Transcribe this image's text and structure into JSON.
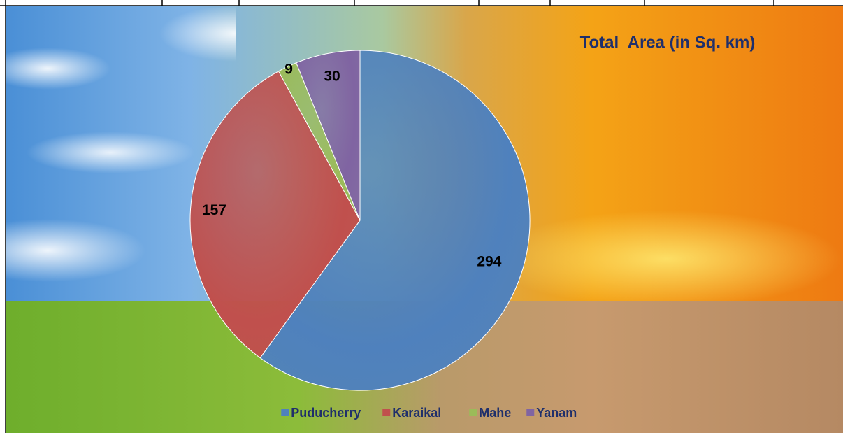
{
  "chart_data": {
    "type": "pie",
    "title": "Total  Area (in Sq. km)",
    "categories": [
      "Puducherry",
      "Karaikal",
      "Mahe",
      "Yanam"
    ],
    "values": [
      294,
      157,
      9,
      30
    ],
    "colors": [
      "#4f81bd",
      "#c0504d",
      "#9bbb59",
      "#8064a2"
    ],
    "legend": "bottom"
  }
}
